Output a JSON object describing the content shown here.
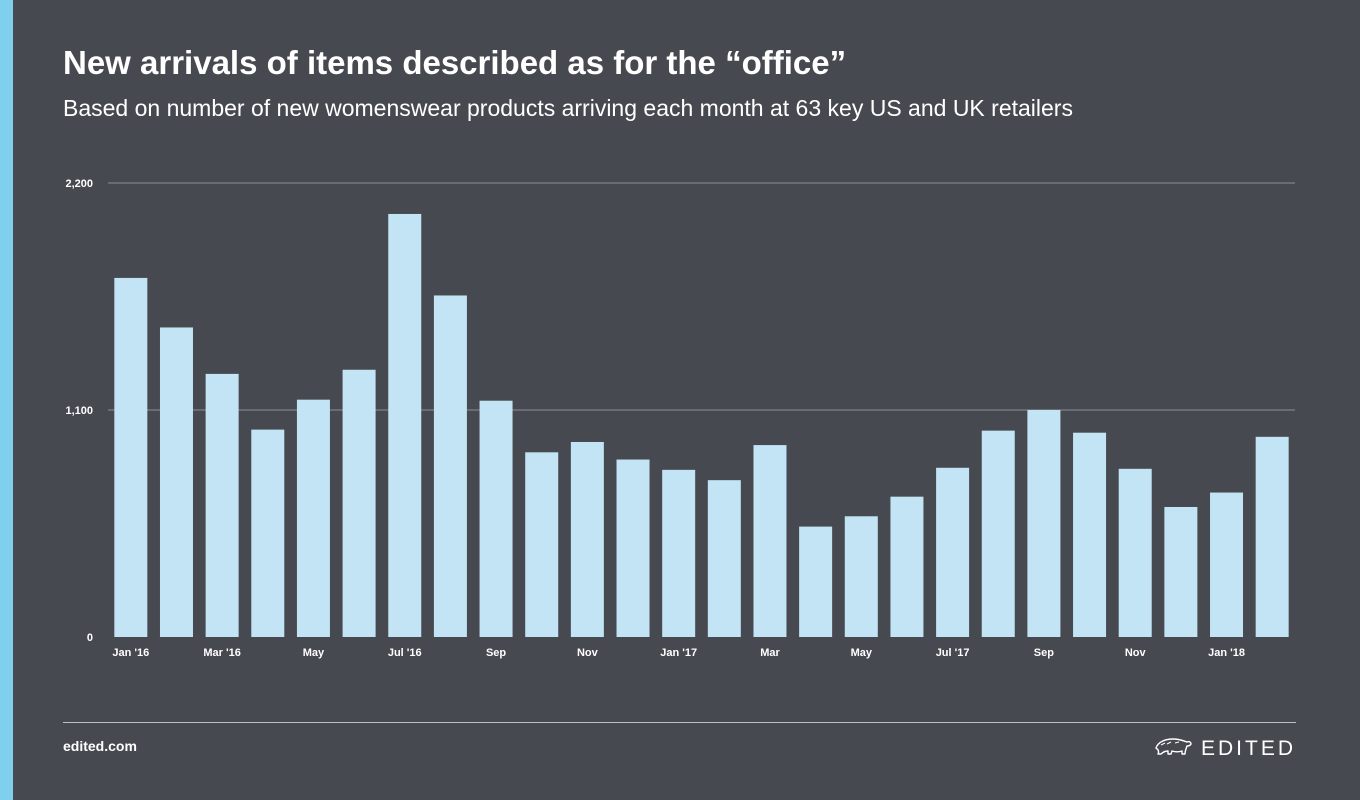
{
  "header": {
    "title": "New arrivals of items described as for the “office”",
    "subtitle": "Based on number of new womenswear products arriving each month at 63 key US and UK retailers"
  },
  "footer": {
    "site": "edited.com",
    "brand": "EDITED",
    "brand_icon": "polar-bear-icon"
  },
  "colors": {
    "background": "#474950",
    "accent": "#7fd0ef",
    "bar": "#c3e4f5",
    "gridline": "#8d8f95"
  },
  "chart_data": {
    "type": "bar",
    "title": "New arrivals of items described as for the “office”",
    "subtitle": "Based on number of new womenswear products arriving each month at 63 key US and UK retailers",
    "xlabel": "",
    "ylabel": "",
    "ylim": [
      0,
      2200
    ],
    "yticks": [
      0,
      1100,
      2200
    ],
    "ytick_labels": [
      "0",
      "1,100",
      "2,200"
    ],
    "grid": true,
    "categories": [
      "Jan '16",
      "Feb '16",
      "Mar '16",
      "Apr '16",
      "May '16",
      "Jun '16",
      "Jul '16",
      "Aug '16",
      "Sep '16",
      "Oct '16",
      "Nov '16",
      "Dec '16",
      "Jan '17",
      "Feb '17",
      "Mar '17",
      "Apr '17",
      "May '17",
      "Jun '17",
      "Jul '17",
      "Aug '17",
      "Sep '17",
      "Oct '17",
      "Nov '17",
      "Dec '17",
      "Jan '18",
      "Feb '18"
    ],
    "tick_labels": [
      "Jan '16",
      "",
      "Mar '16",
      "",
      "May",
      "",
      "Jul '16",
      "",
      "Sep",
      "",
      "Nov",
      "",
      "Jan '17",
      "",
      "Mar",
      "",
      "May",
      "",
      "Jul '17",
      "",
      "Sep",
      "",
      "Nov",
      "",
      "Jan '18",
      ""
    ],
    "values": [
      1740,
      1500,
      1275,
      1005,
      1150,
      1295,
      2050,
      1655,
      1145,
      895,
      945,
      860,
      810,
      760,
      930,
      535,
      585,
      680,
      820,
      1000,
      1100,
      990,
      815,
      630,
      700,
      970
    ]
  }
}
